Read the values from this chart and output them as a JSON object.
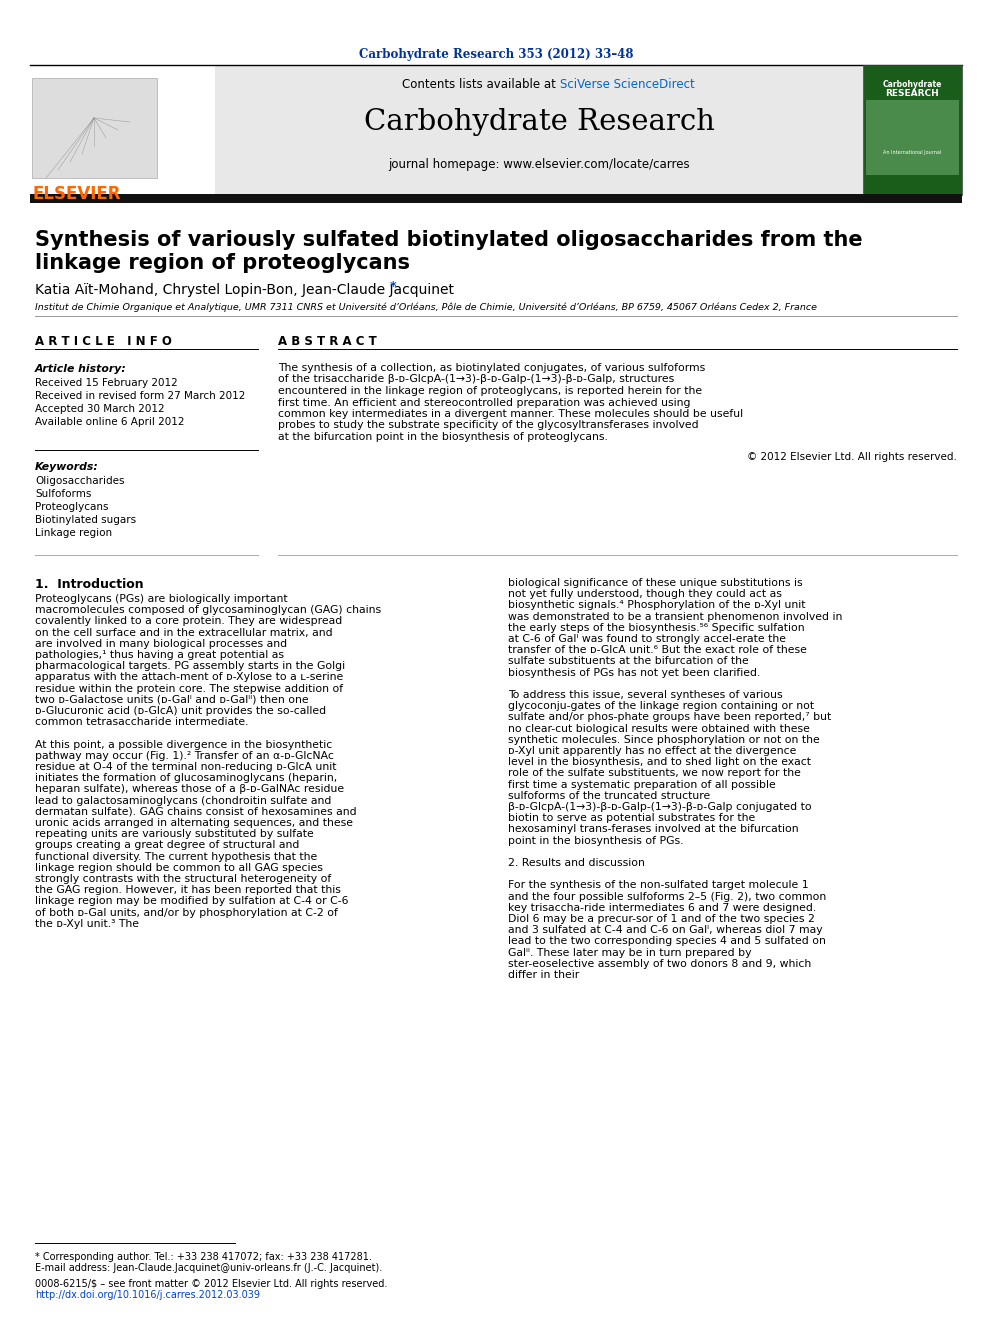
{
  "journal_ref": "Carbohydrate Research 353 (2012) 33–48",
  "journal_ref_color": "#003399",
  "journal_name": "Carbohydrate Research",
  "journal_homepage": "journal homepage: www.elsevier.com/locate/carres",
  "contents_text": "Contents lists available at ",
  "sciverse_text": "SciVerse ScienceDirect",
  "sciverse_color": "#0066cc",
  "title_line1": "Synthesis of variously sulfated biotinylated oligosaccharides from the",
  "title_line2": "linkage region of proteoglycans",
  "authors": "Katia Aït-Mohand, Chrystel Lopin-Bon, Jean-Claude Jacquinet",
  "author_star": "*",
  "affiliation": "Institut de Chimie Organique et Analytique, UMR 7311 CNRS et Université d’Orléans, Pôle de Chimie, Université d’Orléans, BP 6759, 45067 Orléans Cedex 2, France",
  "article_info_header": "A R T I C L E   I N F O",
  "article_history_label": "Article history:",
  "history_lines": [
    "Received 15 February 2012",
    "Received in revised form 27 March 2012",
    "Accepted 30 March 2012",
    "Available online 6 April 2012"
  ],
  "keywords_label": "Keywords:",
  "keywords": [
    "Oligosaccharides",
    "Sulfoforms",
    "Proteoglycans",
    "Biotinylated sugars",
    "Linkage region"
  ],
  "abstract_header": "A B S T R A C T",
  "abstract_text": "The synthesis of a collection, as biotinylated conjugates, of various sulfoforms of the trisaccharide β-ᴅ-GlcpA-(1→3)-β-ᴅ-Galp-(1→3)-β-ᴅ-Galp, structures encountered in the linkage region of proteoglycans, is reported herein for the first time. An efficient and stereocontrolled preparation was achieved using common key intermediates in a divergent manner. These molecules should be useful probes to study the substrate specificity of the glycosyltransferases involved at the bifurcation point in the biosynthesis of proteoglycans.",
  "copyright_text": "© 2012 Elsevier Ltd. All rights reserved.",
  "intro_header": "1.  Introduction",
  "intro_text": "     Proteoglycans (PGs) are biologically important macromolecules composed of glycosaminoglycan (GAG) chains covalently linked to a core protein. They are widespread on the cell surface and in the extracellular matrix, and are involved in many biological processes and pathologies,¹ thus having a great potential as pharmacological targets. PG assembly starts in the Golgi apparatus with the attach-ment of ᴅ-Xylose to a ʟ-serine residue within the protein core. The stepwise addition of two ᴅ-Galactose units (ᴅ-Galᴵ and ᴅ-Galᴵᴵ) then one ᴅ-Glucuronic acid (ᴅ-GlcA) unit provides the so-called common tetrasaccharide intermediate.\n\n     At this point, a possible divergence in the biosynthetic pathway may occur (Fig. 1).² Transfer of an α-ᴅ-GlcNAc residue at O-4 of the terminal non-reducing ᴅ-GlcA unit initiates the formation of glucosaminoglycans (heparin, heparan sulfate), whereas those of a β-ᴅ-GalNAc residue lead to galactosaminoglycans (chondroitin sulfate and dermatan sulfate). GAG chains consist of hexosamines and uronic acids arranged in alternating sequences, and these repeating units are variously substituted by sulfate groups creating a great degree of structural and functional diversity. The current hypothesis that the linkage region should be common to all GAG species strongly contrasts with the structural heterogeneity of the GAG region. However, it has been reported that this linkage region may be modified by sulfation at C-4 or C-6 of both ᴅ-Gal units, and/or by phosphorylation at C-2 of the ᴅ-Xyl unit.³ The",
  "right_col_text": "biological significance of these unique substitutions is not yet fully understood, though they could act as biosynthetic signals.⁴ Phosphorylation of the ᴅ-Xyl unit was demonstrated to be a transient phenomenon involved in the early steps of the biosynthesis.⁵⁶ Specific sulfation at C-6 of Galᴵ was found to strongly accel-erate the transfer of the ᴅ-GlcA unit.⁶ But the exact role of these sulfate substituents at the bifurcation of the biosynthesis of PGs has not yet been clarified.\n\n     To address this issue, several syntheses of various glycoconju-gates of the linkage region containing or not sulfate and/or phos-phate groups have been reported,⁷ but no clear-cut biological results were obtained with these synthetic molecules. Since phosphorylation or not on the ᴅ-Xyl unit apparently has no effect at the divergence level in the biosynthesis, and to shed light on the exact role of the sulfate substituents, we now report for the first time a systematic preparation of all possible sulfoforms of the truncated structure β-ᴅ-GlcpA-(1→3)-β-ᴅ-Galp-(1→3)-β-ᴅ-Galp conjugated to biotin to serve as potential substrates for the hexosaminyl trans-ferases involved at the bifurcation point in the biosynthesis of PGs.\n\n2.  Results and discussion\n\n     For the synthesis of the non-sulfated target molecule 1 and the four possible sulfoforms 2–5 (Fig. 2), two common key trisaccha-ride intermediates 6 and 7 were designed. Diol 6 may be a precur-sor of 1 and of the two species 2 and 3 sulfated at C-4 and C-6 on Galᴵ, whereas diol 7 may lead to the two corresponding species 4 and 5 sulfated on Galᴵᴵ. These later may be in turn prepared by ster-eoselective assembly of two donors 8 and 9, which differ in their",
  "footnote_star": "* Corresponding author. Tel.: +33 238 417072; fax: +33 238 417281.",
  "footnote_email": "E-mail address: Jean-Claude.Jacquinet@univ-orleans.fr (J.-C. Jacquinet).",
  "footnote_issn": "0008-6215/$ – see front matter © 2012 Elsevier Ltd. All rights reserved.",
  "footnote_doi": "http://dx.doi.org/10.1016/j.carres.2012.03.039",
  "elsevier_color": "#FF6600",
  "header_bar_color": "#111111",
  "header_bg_color": "#e8e8e8",
  "bg_color": "#ffffff"
}
